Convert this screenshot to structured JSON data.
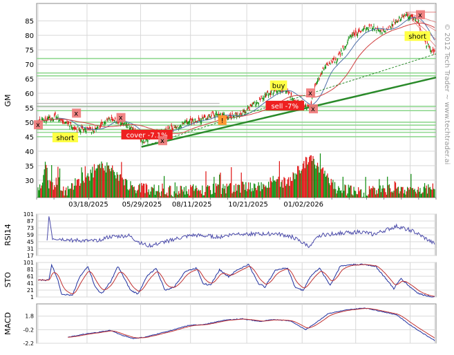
{
  "chart_data": [
    {
      "type": "candlestick",
      "ylabel": "GM",
      "yticks": [
        30,
        35,
        40,
        45,
        50,
        55,
        60,
        65,
        70,
        75,
        80,
        85
      ],
      "ylim": [
        24,
        91
      ],
      "xtick_labels": [
        "03/18/2025",
        "05/29/2025",
        "08/11/2025",
        "10/21/2025",
        "01/02/2026"
      ],
      "grid": true,
      "colors": {
        "up": "#0a8a0a",
        "down": "#e01010",
        "ma": [
          "#4e6fa8",
          "#d04040"
        ],
        "support": "#90d890",
        "trend": "#2a8a2a"
      },
      "price_path": [
        [
          0,
          50.5
        ],
        [
          20,
          52
        ],
        [
          40,
          48
        ],
        [
          62,
          47
        ],
        [
          80,
          51.5
        ],
        [
          100,
          49
        ],
        [
          115,
          43
        ],
        [
          130,
          46
        ],
        [
          150,
          48
        ],
        [
          165,
          50
        ],
        [
          180,
          51
        ],
        [
          195,
          53
        ],
        [
          210,
          52
        ],
        [
          225,
          53
        ],
        [
          245,
          58
        ],
        [
          262,
          61
        ],
        [
          272,
          61.5
        ],
        [
          285,
          57
        ],
        [
          292,
          56
        ],
        [
          300,
          55
        ],
        [
          306,
          63
        ],
        [
          315,
          69
        ],
        [
          330,
          72
        ],
        [
          345,
          80
        ],
        [
          365,
          83
        ],
        [
          380,
          81
        ],
        [
          395,
          85
        ],
        [
          405,
          87
        ],
        [
          418,
          85
        ],
        [
          428,
          77
        ],
        [
          437,
          74
        ]
      ],
      "volume_profile": [
        [
          0,
          27
        ],
        [
          10,
          34
        ],
        [
          12,
          29
        ],
        [
          30,
          26
        ],
        [
          50,
          31
        ],
        [
          60,
          32
        ],
        [
          70,
          35
        ],
        [
          80,
          34
        ],
        [
          100,
          28
        ],
        [
          115,
          27
        ],
        [
          150,
          26
        ],
        [
          200,
          27
        ],
        [
          245,
          28
        ],
        [
          260,
          30
        ],
        [
          275,
          29
        ],
        [
          300,
          38
        ],
        [
          310,
          34
        ],
        [
          330,
          27
        ],
        [
          360,
          26
        ],
        [
          400,
          27
        ],
        [
          437,
          27
        ]
      ],
      "support_levels": [
        55.5,
        54,
        50,
        49,
        47.5,
        46.5,
        45,
        66,
        67,
        72
      ],
      "trendlines": [
        {
          "x": [
            114,
            437
          ],
          "y": [
            41.5,
            65
          ]
        },
        {
          "x": [
            114,
            437
          ],
          "y": [
            41.5,
            73
          ],
          "style": "dashed"
        }
      ],
      "annotations": [
        {
          "type": "flag",
          "text": "short",
          "at": [
            30,
            44.5
          ],
          "fill": "#ffff44"
        },
        {
          "type": "flag",
          "text": "cover -7.1%",
          "at": [
            120,
            45.5
          ],
          "fill": "#ee2020"
        },
        {
          "type": "flag",
          "text": "buy",
          "at": [
            265,
            62.5
          ],
          "fill": "#ffff44"
        },
        {
          "type": "flag",
          "text": "sell -7%",
          "at": [
            272,
            55.5
          ],
          "fill": "#ee2020"
        },
        {
          "type": "flag",
          "text": "short",
          "at": [
            418,
            79.5
          ],
          "fill": "#ffff44"
        },
        {
          "type": "flag",
          "text": "!",
          "at": [
            203,
            50.5
          ],
          "fill": "#ff9933"
        },
        {
          "type": "marker",
          "text": "x",
          "at": [
            0,
            49
          ]
        },
        {
          "type": "marker",
          "text": "x",
          "at": [
            42,
            53
          ]
        },
        {
          "type": "marker",
          "text": "x",
          "at": [
            91,
            51.5
          ]
        },
        {
          "type": "marker",
          "text": "x",
          "at": [
            137,
            43.5
          ]
        },
        {
          "type": "marker",
          "text": "x",
          "at": [
            300,
            60
          ]
        },
        {
          "type": "marker",
          "text": "x",
          "at": [
            303,
            54.5
          ]
        },
        {
          "type": "marker",
          "text": "x",
          "at": [
            421,
            87
          ]
        }
      ]
    },
    {
      "type": "line",
      "ylabel": "RSI14",
      "yticks": [
        17,
        31,
        45,
        59,
        73,
        87,
        101
      ],
      "ylim": [
        17,
        101
      ],
      "color": "#4a4aaa",
      "path": [
        [
          10,
          45
        ],
        [
          12,
          99
        ],
        [
          16,
          52
        ],
        [
          40,
          48
        ],
        [
          60,
          46
        ],
        [
          80,
          55
        ],
        [
          100,
          57
        ],
        [
          115,
          40
        ],
        [
          125,
          37
        ],
        [
          150,
          50
        ],
        [
          170,
          58
        ],
        [
          200,
          55
        ],
        [
          220,
          62
        ],
        [
          245,
          60
        ],
        [
          260,
          62
        ],
        [
          280,
          55
        ],
        [
          292,
          42
        ],
        [
          300,
          35
        ],
        [
          310,
          58
        ],
        [
          330,
          62
        ],
        [
          355,
          65
        ],
        [
          370,
          60
        ],
        [
          395,
          76
        ],
        [
          410,
          69
        ],
        [
          420,
          59
        ],
        [
          430,
          48
        ],
        [
          437,
          40
        ]
      ]
    },
    {
      "type": "line",
      "ylabel": "STO",
      "yticks": [
        1,
        21,
        41,
        61,
        81,
        101
      ],
      "ylim": [
        1,
        101
      ],
      "color": "#1f2f9f",
      "path": [
        [
          0,
          50
        ],
        [
          12,
          50
        ],
        [
          15,
          95
        ],
        [
          22,
          50
        ],
        [
          26,
          10
        ],
        [
          38,
          5
        ],
        [
          45,
          55
        ],
        [
          55,
          90
        ],
        [
          63,
          30
        ],
        [
          70,
          10
        ],
        [
          80,
          45
        ],
        [
          88,
          90
        ],
        [
          95,
          55
        ],
        [
          102,
          20
        ],
        [
          110,
          10
        ],
        [
          120,
          60
        ],
        [
          130,
          85
        ],
        [
          140,
          20
        ],
        [
          150,
          30
        ],
        [
          162,
          75
        ],
        [
          175,
          85
        ],
        [
          182,
          40
        ],
        [
          190,
          35
        ],
        [
          200,
          80
        ],
        [
          210,
          60
        ],
        [
          220,
          80
        ],
        [
          232,
          95
        ],
        [
          243,
          40
        ],
        [
          250,
          30
        ],
        [
          262,
          80
        ],
        [
          275,
          85
        ],
        [
          283,
          30
        ],
        [
          292,
          20
        ],
        [
          300,
          60
        ],
        [
          310,
          85
        ],
        [
          322,
          35
        ],
        [
          333,
          90
        ],
        [
          345,
          95
        ],
        [
          360,
          95
        ],
        [
          372,
          90
        ],
        [
          383,
          55
        ],
        [
          392,
          25
        ],
        [
          400,
          55
        ],
        [
          410,
          30
        ],
        [
          420,
          10
        ],
        [
          432,
          3
        ],
        [
          437,
          1
        ]
      ]
    },
    {
      "type": "line",
      "ylabel": "MACD",
      "yticks": [
        -2.2,
        -0.2,
        1.8
      ],
      "ylim": [
        -2.2,
        3.6
      ],
      "color": "#1f2f9f",
      "path": [
        [
          33,
          -1.3
        ],
        [
          50,
          -0.9
        ],
        [
          60,
          -0.7
        ],
        [
          80,
          -0.3
        ],
        [
          92,
          -1.0
        ],
        [
          105,
          -1.5
        ],
        [
          118,
          -1.3
        ],
        [
          135,
          -0.7
        ],
        [
          150,
          -0.2
        ],
        [
          165,
          0.4
        ],
        [
          185,
          0.6
        ],
        [
          205,
          1.2
        ],
        [
          225,
          1.4
        ],
        [
          245,
          1.0
        ],
        [
          260,
          1.3
        ],
        [
          278,
          1.1
        ],
        [
          295,
          -0.2
        ],
        [
          308,
          1.0
        ],
        [
          320,
          2.2
        ],
        [
          340,
          2.7
        ],
        [
          360,
          3.0
        ],
        [
          378,
          2.5
        ],
        [
          395,
          2.0
        ],
        [
          410,
          0.5
        ],
        [
          425,
          -0.8
        ],
        [
          437,
          -1.8
        ]
      ]
    }
  ],
  "watermark": "© 2012 Tech Trader ~ www.techtrader.ai"
}
